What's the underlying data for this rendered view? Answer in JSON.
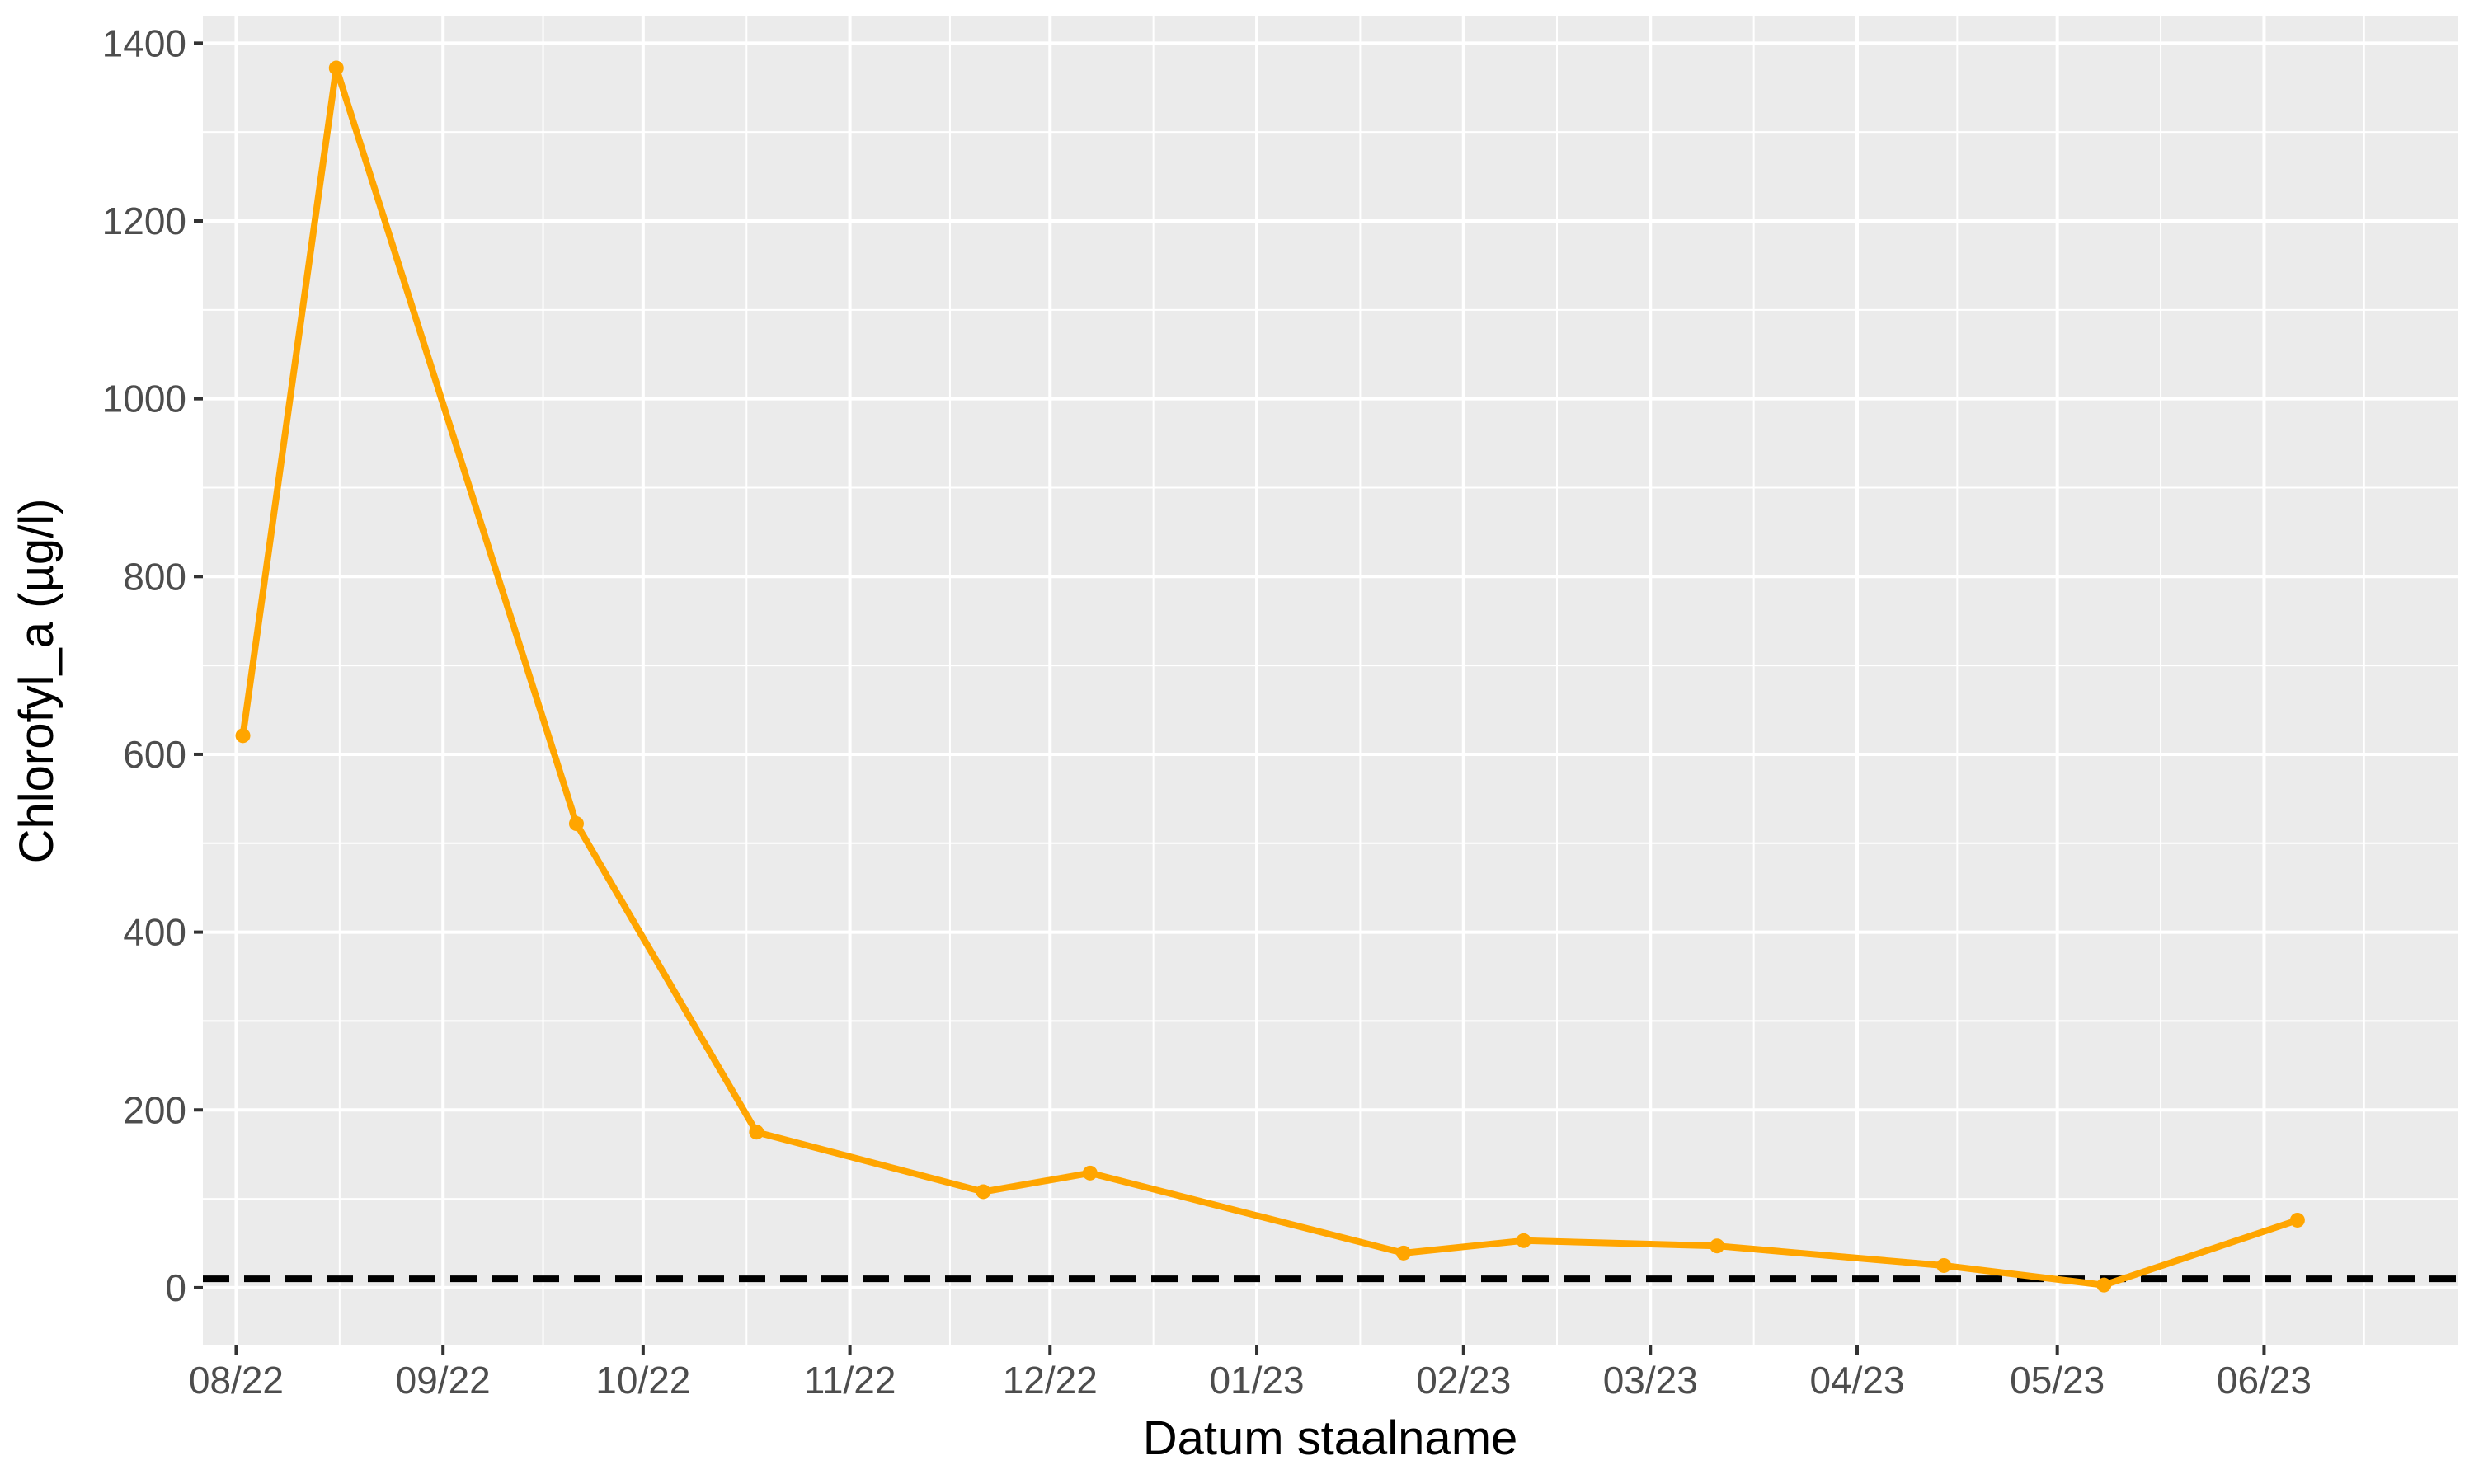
{
  "chart_data": {
    "type": "line",
    "xlabel": "Datum staalname",
    "ylabel": "Chlorofyl_a (µg/l)",
    "x_ticks": [
      "08/22",
      "09/22",
      "10/22",
      "11/22",
      "12/22",
      "01/23",
      "02/23",
      "03/23",
      "04/23",
      "05/23",
      "06/23"
    ],
    "y_ticks": [
      0,
      200,
      400,
      600,
      800,
      1000,
      1200,
      1400
    ],
    "xlim": [
      "2022-07-27",
      "2023-06-30"
    ],
    "ylim": [
      -65,
      1430
    ],
    "grid": true,
    "series": [
      {
        "x": [
          "2022-08-02",
          "2022-08-16",
          "2022-09-21",
          "2022-10-18",
          "2022-11-21",
          "2022-12-07",
          "2023-01-23",
          "2023-02-10",
          "2023-03-11",
          "2023-04-14",
          "2023-05-08",
          "2023-06-06"
        ],
        "y": [
          621,
          1372,
          522,
          175,
          108,
          129,
          39,
          53,
          47,
          25,
          3,
          76
        ],
        "color": "#FFA500"
      }
    ],
    "reference_line": {
      "y": 10,
      "style": "dashed",
      "color": "#000000"
    }
  }
}
